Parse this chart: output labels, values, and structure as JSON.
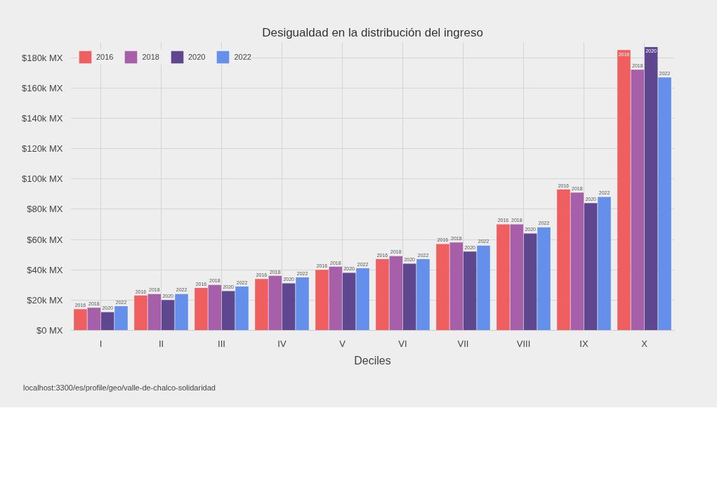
{
  "chart_data": {
    "type": "bar",
    "title": "Desigualdad en la distribución del ingreso",
    "xlabel": "Deciles",
    "categories": [
      "I",
      "II",
      "III",
      "IV",
      "V",
      "VI",
      "VII",
      "VIII",
      "IX",
      "X"
    ],
    "series": [
      {
        "name": "2016",
        "color": "#f05f5f",
        "values": [
          14000,
          23000,
          28000,
          34000,
          40000,
          47000,
          57000,
          70000,
          93000,
          185000
        ]
      },
      {
        "name": "2018",
        "color": "#a65fa8",
        "values": [
          15000,
          24000,
          30000,
          36000,
          42000,
          49000,
          58000,
          70000,
          91000,
          172000
        ]
      },
      {
        "name": "2020",
        "color": "#5e478f",
        "values": [
          12000,
          20000,
          26000,
          31000,
          38000,
          44000,
          52000,
          64000,
          84000,
          187000
        ]
      },
      {
        "name": "2022",
        "color": "#6490ec",
        "values": [
          16000,
          24000,
          29000,
          35000,
          41000,
          47000,
          56000,
          68000,
          88000,
          167000
        ]
      }
    ],
    "ylim": [
      0,
      190000
    ],
    "yticks": [
      {
        "value": 0,
        "label": "$0 MX"
      },
      {
        "value": 20000,
        "label": "$20k MX"
      },
      {
        "value": 40000,
        "label": "$40k MX"
      },
      {
        "value": 60000,
        "label": "$60k MX"
      },
      {
        "value": 80000,
        "label": "$80k MX"
      },
      {
        "value": 100000,
        "label": "$100k MX"
      },
      {
        "value": 120000,
        "label": "$120k MX"
      },
      {
        "value": 140000,
        "label": "$140k MX"
      },
      {
        "value": 160000,
        "label": "$160k MX"
      },
      {
        "value": 180000,
        "label": "$180k MX"
      }
    ],
    "grid": true,
    "legend": "top left",
    "annotations": [
      "localhost:3300/es/profile/geo/valle-de-chalco-solidaridad"
    ]
  }
}
